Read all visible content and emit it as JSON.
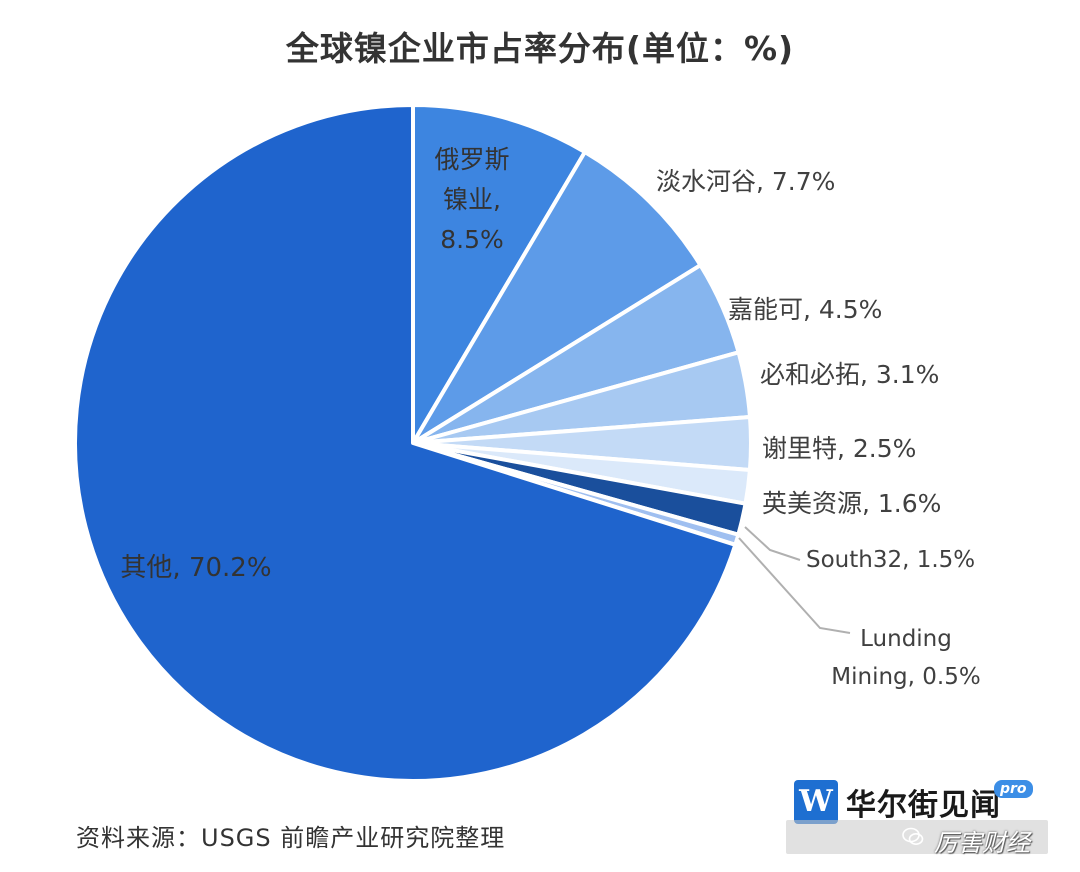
{
  "chart_data": {
    "type": "pie",
    "title": "全球镍企业市占率分布(单位：%)",
    "slices": [
      {
        "label": "俄罗斯镍业",
        "value": 8.5,
        "color": "#3d85e0"
      },
      {
        "label": "淡水河谷",
        "value": 7.7,
        "color": "#5d9be8"
      },
      {
        "label": "嘉能可",
        "value": 4.5,
        "color": "#86b5ee"
      },
      {
        "label": "必和必拓",
        "value": 3.1,
        "color": "#a7c9f2"
      },
      {
        "label": "谢里特",
        "value": 2.5,
        "color": "#c3daf6"
      },
      {
        "label": "英美资源",
        "value": 1.6,
        "color": "#dbe9fa"
      },
      {
        "label": "South32",
        "value": 1.5,
        "color": "#1a4f9c"
      },
      {
        "label": "Lunding Mining",
        "value": 0.5,
        "color": "#9fbff0"
      },
      {
        "label": "其他",
        "value": 70.2,
        "color": "#1f64cd"
      }
    ],
    "data_labels": [
      {
        "lines": [
          "俄罗斯",
          "镍业,",
          "8.5%"
        ]
      },
      {
        "lines": [
          "淡水河谷, 7.7%"
        ]
      },
      {
        "lines": [
          "嘉能可, 4.5%"
        ]
      },
      {
        "lines": [
          "必和必拓, 3.1%"
        ]
      },
      {
        "lines": [
          "谢里特, 2.5%"
        ]
      },
      {
        "lines": [
          "英美资源, 1.6%"
        ]
      },
      {
        "lines": [
          "South32, 1.5%"
        ]
      },
      {
        "lines": [
          "Lunding",
          "Mining, 0.5%"
        ]
      },
      {
        "lines": [
          "其他, 70.2%"
        ]
      }
    ],
    "legend": "none"
  },
  "source": "资料来源：USGS 前瞻产业研究院整理",
  "brand": {
    "logo_letter": "W",
    "name": "华尔街见闻",
    "badge": "pro",
    "wechat_name": "厉害财经"
  }
}
